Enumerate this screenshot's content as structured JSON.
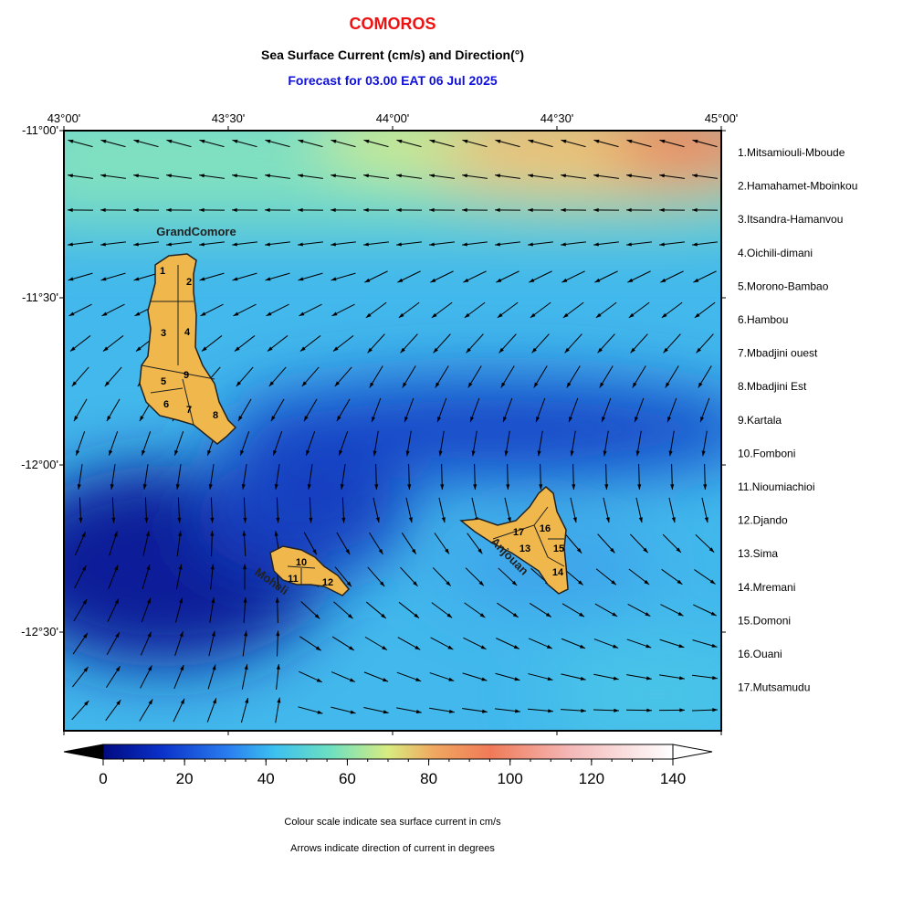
{
  "header": {
    "title": "COMOROS",
    "subtitle": "Sea Surface Current (cm/s) and Direction(°)",
    "forecast": "Forecast for  03.00 EAT 06 Jul 2025"
  },
  "map": {
    "xlim": [
      43,
      45
    ],
    "ylim": [
      -12.795,
      -11
    ],
    "lon_ticks": [
      {
        "value": 43,
        "label": "43°00'"
      },
      {
        "value": 43.5,
        "label": "43°30'"
      },
      {
        "value": 44,
        "label": "44°00'"
      },
      {
        "value": 44.5,
        "label": "44°30'"
      },
      {
        "value": 45,
        "label": "45°00'"
      }
    ],
    "lat_ticks": [
      {
        "value": -11,
        "label": "-11°00'"
      },
      {
        "value": -11.5,
        "label": "-11°30'"
      },
      {
        "value": -12,
        "label": "-12°00'"
      },
      {
        "value": -12.5,
        "label": "-12°30'"
      }
    ],
    "islands": [
      "GrandComore",
      "Moheli",
      "Anjouan"
    ],
    "districts": [
      "1",
      "2",
      "3",
      "4",
      "5",
      "6",
      "7",
      "8",
      "9",
      "10",
      "11",
      "12",
      "13",
      "14",
      "15",
      "16",
      "17"
    ]
  },
  "legend": [
    "1.Mitsamiouli-Mboude",
    "2.Hamahamet-Mboinkou",
    "3.Itsandra-Hamanvou",
    "4.Oichili-dimani",
    "5.Morono-Bambao",
    "6.Hambou",
    "7.Mbadjini ouest",
    "8.Mbadjini Est",
    "9.Kartala",
    "10.Fomboni",
    "11.Nioumiachioi",
    "12.Djando",
    "13.Sima",
    "14.Mremani",
    "15.Domoni",
    "16.Ouani",
    "17.Mutsamudu"
  ],
  "colorbar": {
    "lim": [
      0,
      140
    ],
    "ticks": [
      0,
      20,
      40,
      60,
      80,
      100,
      120,
      140
    ]
  },
  "notes": [
    "Colour scale indicate sea surface current in cm/s",
    "Arrows indicate direction of current in degrees"
  ]
}
